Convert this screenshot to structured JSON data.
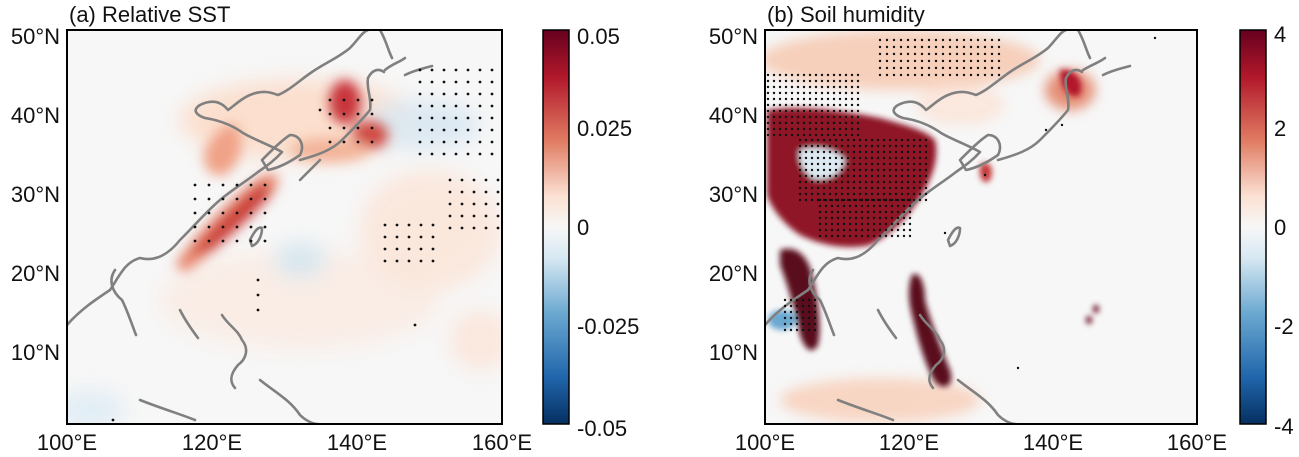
{
  "panels": [
    {
      "id": "a",
      "title": "(a) Relative SST",
      "variable": "Relative SST",
      "lon_range": [
        100,
        160
      ],
      "lat_range": [
        0,
        50
      ],
      "xticks": [
        "100°E",
        "120°E",
        "140°E",
        "160°E"
      ],
      "yticks": [
        "50°N",
        "40°N",
        "30°N",
        "20°N",
        "10°N"
      ],
      "colorbar": {
        "min": -0.05,
        "max": 0.05,
        "ticks": [
          "0.05",
          "0.025",
          "0",
          "-0.025",
          "-0.05"
        ],
        "colormap": "blue-white-red"
      },
      "features": [
        {
          "name": "East China Sea / Yellow Sea warm band",
          "lon": 124,
          "lat": 29,
          "value": 0.05
        },
        {
          "name": "Sea of Japan warm anomaly",
          "lon": 138,
          "lat": 41,
          "value": 0.05
        },
        {
          "name": "East of Japan warm anomaly",
          "lon": 142,
          "lat": 37,
          "value": 0.045
        }
      ]
    },
    {
      "id": "b",
      "title": "(b) Soil humidity",
      "variable": "Soil humidity",
      "lon_range": [
        100,
        160
      ],
      "lat_range": [
        0,
        50
      ],
      "xticks": [
        "100°E",
        "120°E",
        "140°E",
        "160°E"
      ],
      "yticks": [
        "50°N",
        "40°N",
        "30°N",
        "20°N",
        "10°N"
      ],
      "colorbar": {
        "min": -4,
        "max": 4,
        "ticks": [
          "4",
          "2",
          "0",
          "-2",
          "-4"
        ],
        "colormap": "blue-white-red"
      },
      "features": [
        {
          "name": "Eastern China wet anomaly",
          "lon": 113,
          "lat": 30,
          "value": 3
        },
        {
          "name": "Philippines wet anomaly",
          "lon": 123,
          "lat": 12,
          "value": 4
        },
        {
          "name": "Indochina wet anomaly",
          "lon": 106,
          "lat": 16,
          "value": 4
        }
      ]
    }
  ],
  "colors": {
    "dark_red": "#67001f",
    "red": "#b2182b",
    "light_red": "#f4a582",
    "white": "#f7f7f7",
    "light_blue": "#92c5de",
    "blue": "#2166ac",
    "dark_blue": "#053061",
    "coast": "#808080"
  }
}
